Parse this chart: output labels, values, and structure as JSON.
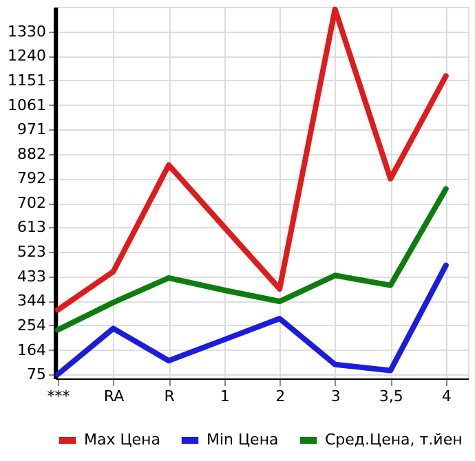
{
  "chart_data": {
    "type": "line",
    "categories": [
      "***",
      "RA",
      "R",
      "1",
      "2",
      "3",
      "3,5",
      "4"
    ],
    "series": [
      {
        "name": "Max Цена",
        "color": "#dd1c1c",
        "values": [
          311,
          451,
          841,
          614,
          388,
          1411,
          791,
          1167
        ]
      },
      {
        "name": "Min Цена",
        "color": "#1c1cdd",
        "values": [
          75,
          243,
          125,
          202,
          279,
          111,
          89,
          474
        ]
      },
      {
        "name": "Сред.Цена, т.йен",
        "color": "#0d7d0d",
        "values": [
          238,
          338,
          428,
          383,
          342,
          437,
          401,
          754
        ]
      }
    ],
    "ylim": [
      60,
      1420
    ],
    "yticks": [
      75,
      164,
      254,
      344,
      433,
      523,
      613,
      702,
      792,
      882,
      971,
      1061,
      1151,
      1240,
      1330
    ],
    "grid": true,
    "legend": "bottom",
    "marker": "none",
    "line_style": "solid"
  }
}
